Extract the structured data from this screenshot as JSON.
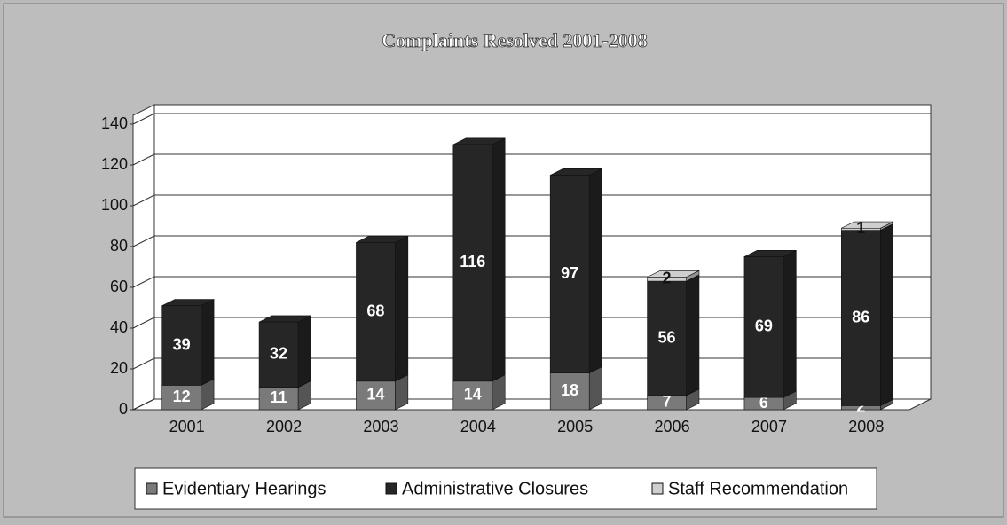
{
  "chart_data": {
    "type": "bar3d_stacked",
    "title": "Complaints Resolved 2001-2008",
    "categories": [
      "2001",
      "2002",
      "2003",
      "2004",
      "2005",
      "2006",
      "2007",
      "2008"
    ],
    "series": [
      {
        "name": "Evidentiary Hearings",
        "color": "#7a7a7a",
        "values": [
          12,
          11,
          14,
          14,
          18,
          7,
          6,
          2
        ]
      },
      {
        "name": "Administrative Closures",
        "color": "#262626",
        "values": [
          39,
          32,
          68,
          116,
          97,
          56,
          69,
          86
        ]
      },
      {
        "name": "Staff Recommendation",
        "color": "#cfcfcf",
        "values": [
          null,
          null,
          null,
          null,
          null,
          2,
          null,
          1
        ]
      }
    ],
    "ylim": [
      0,
      140
    ],
    "yticks": [
      0,
      20,
      40,
      60,
      80,
      100,
      120,
      140
    ],
    "grid": true,
    "legend": "bottom"
  }
}
